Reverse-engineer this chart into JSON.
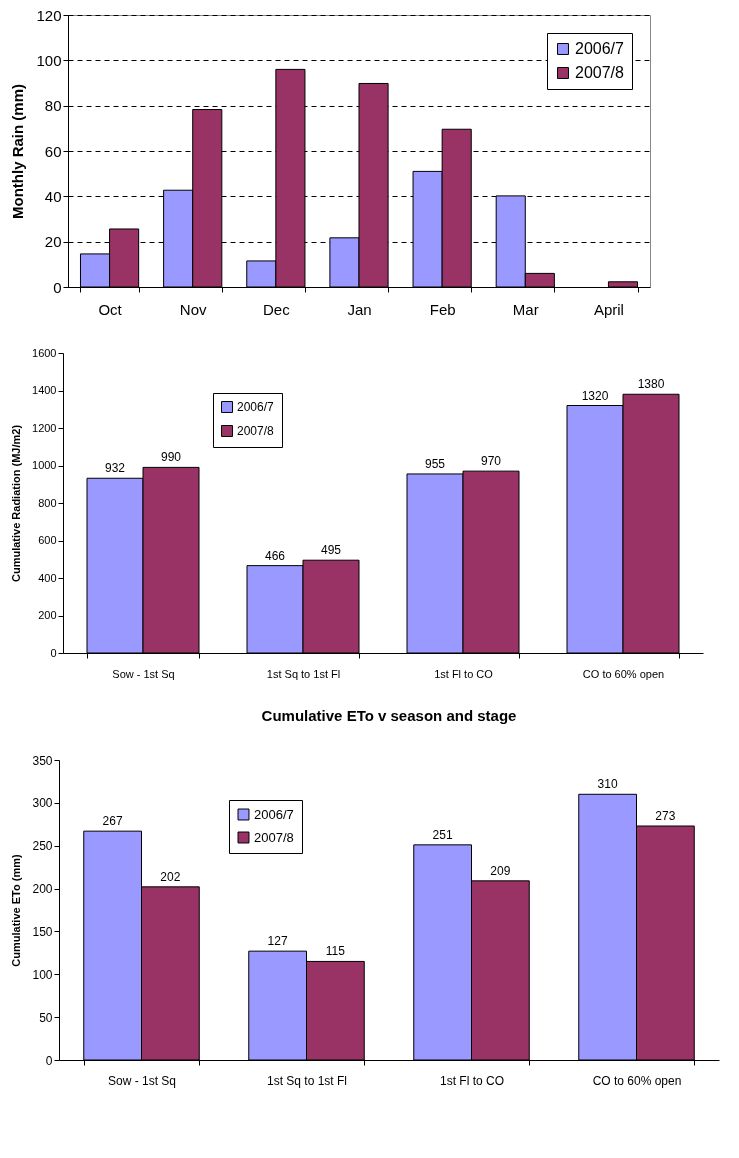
{
  "chart_data": [
    {
      "type": "bar",
      "ylabel": "Monthly Rain (mm)",
      "categories": [
        "Oct",
        "Nov",
        "Dec",
        "Jan",
        "Feb",
        "Mar",
        "April"
      ],
      "series": [
        {
          "name": "2006/7",
          "color": "#9999ff",
          "values": [
            14.6,
            42.7,
            11.5,
            21.7,
            51,
            40.2,
            null
          ]
        },
        {
          "name": "2007/8",
          "color": "#993366",
          "values": [
            25.6,
            78.3,
            96,
            89.8,
            69.6,
            6,
            2.3
          ]
        }
      ],
      "ylim": [
        0,
        120
      ],
      "yticks": [
        0,
        20,
        40,
        60,
        80,
        100,
        120
      ],
      "grid": "y",
      "legend": "top right"
    },
    {
      "type": "bar",
      "ylabel": "Cumulative Radiation (MJ/m2)",
      "categories": [
        "Sow - 1st Sq",
        "1st Sq to 1st Fl",
        "1st Fl to CO",
        "CO to 60% open"
      ],
      "series": [
        {
          "name": "2006/7",
          "color": "#9999ff",
          "values": [
            932,
            466,
            955,
            1320
          ]
        },
        {
          "name": "2007/8",
          "color": "#993366",
          "values": [
            990,
            495,
            970,
            1380
          ]
        }
      ],
      "ylim": [
        0,
        1600
      ],
      "yticks": [
        0,
        200,
        400,
        600,
        800,
        1000,
        1200,
        1400,
        1600
      ],
      "data_labels": true,
      "legend": "top left"
    },
    {
      "type": "bar",
      "title": "Cumulative ETo v season and stage",
      "ylabel": "Cumulative ETo (mm)",
      "categories": [
        "Sow - 1st Sq",
        "1st Sq to 1st Fl",
        "1st Fl to CO",
        "CO to 60% open"
      ],
      "series": [
        {
          "name": "2006/7",
          "color": "#9999ff",
          "values": [
            267,
            127,
            251,
            310
          ]
        },
        {
          "name": "2007/8",
          "color": "#993366",
          "values": [
            202,
            115,
            209,
            273
          ]
        }
      ],
      "ylim": [
        0,
        350
      ],
      "yticks": [
        0,
        50,
        100,
        150,
        200,
        250,
        300,
        350
      ],
      "data_labels": true,
      "legend": "top left"
    }
  ]
}
